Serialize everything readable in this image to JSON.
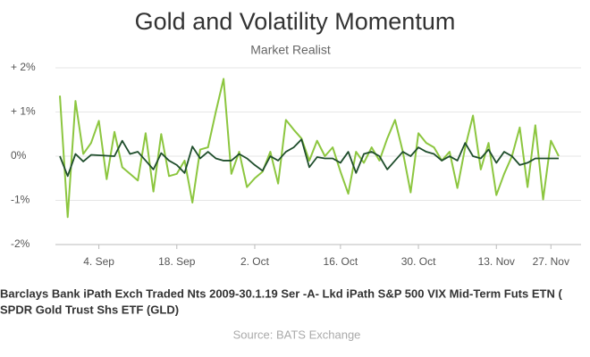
{
  "chart_data": {
    "type": "line",
    "title": "Gold and Volatility Momentum",
    "subtitle": "Market Realist",
    "source": "Source: BATS Exchange",
    "categories": [
      null,
      null,
      null,
      null,
      null,
      "4. Sep",
      null,
      null,
      null,
      null,
      null,
      null,
      null,
      null,
      null,
      "18. Sep",
      null,
      null,
      null,
      null,
      null,
      null,
      null,
      null,
      null,
      "2. Oct",
      null,
      null,
      null,
      null,
      null,
      null,
      null,
      null,
      null,
      null,
      "16. Oct",
      null,
      null,
      null,
      null,
      null,
      null,
      null,
      null,
      null,
      "30. Oct",
      null,
      null,
      null,
      null,
      null,
      null,
      null,
      null,
      null,
      "13. Nov",
      null,
      null,
      null,
      null,
      null,
      null,
      "27. Nov",
      null
    ],
    "series": [
      {
        "name": "Barclays Bank iPath Exch Traded Nts 2009-30.1.19 Ser -A- Lkd iPath S&P 500 VIX Mid-Term Futs ETN (",
        "color": "#8cc63f",
        "values": [
          1.37,
          -1.38,
          1.25,
          0.05,
          0.3,
          0.8,
          -0.52,
          0.55,
          -0.25,
          -0.4,
          -0.55,
          0.52,
          -0.8,
          0.5,
          -0.45,
          -0.4,
          -0.1,
          -1.05,
          0.15,
          0.2,
          1.0,
          1.75,
          -0.4,
          0.1,
          -0.7,
          -0.5,
          -0.35,
          0.1,
          -0.62,
          0.82,
          0.6,
          0.4,
          -0.1,
          0.35,
          0.0,
          0.2,
          -0.35,
          -0.85,
          0.1,
          -0.15,
          0.2,
          -0.1,
          0.4,
          0.82,
          0.1,
          -0.82,
          0.52,
          0.3,
          0.2,
          -0.1,
          0.1,
          -0.72,
          0.2,
          0.92,
          -0.3,
          0.3,
          -0.88,
          -0.4,
          0.0,
          0.65,
          -0.7,
          0.7,
          -0.98,
          0.35,
          0.0
        ]
      },
      {
        "name": "SPDR Gold Trust Shs ETF (GLD)",
        "color": "#1f4e2c",
        "values": [
          0.0,
          -0.45,
          0.05,
          -0.12,
          0.03,
          0.02,
          0.01,
          0.0,
          0.35,
          0.05,
          0.1,
          -0.1,
          -0.3,
          0.07,
          -0.1,
          -0.2,
          -0.38,
          0.22,
          -0.05,
          0.1,
          -0.05,
          -0.1,
          -0.1,
          0.05,
          -0.05,
          -0.2,
          -0.33,
          0.0,
          -0.1,
          0.1,
          0.2,
          0.38,
          -0.25,
          -0.02,
          -0.05,
          -0.05,
          -0.15,
          0.1,
          -0.38,
          0.05,
          0.1,
          0.0,
          -0.3,
          -0.1,
          0.1,
          0.0,
          0.2,
          0.1,
          0.05,
          -0.1,
          0.0,
          -0.1,
          0.3,
          0.0,
          -0.05,
          0.15,
          -0.15,
          0.1,
          0.0,
          -0.2,
          -0.15,
          -0.05,
          -0.05,
          -0.05,
          -0.05
        ]
      }
    ],
    "ylim": [
      -2,
      2
    ],
    "yticks": [
      {
        "value": -2,
        "label": "-2%"
      },
      {
        "value": -1,
        "label": "-1%"
      },
      {
        "value": 0,
        "label": "0%"
      },
      {
        "value": 1,
        "label": "+ 1%"
      },
      {
        "value": 2,
        "label": "+ 2%"
      }
    ],
    "grid": true
  }
}
